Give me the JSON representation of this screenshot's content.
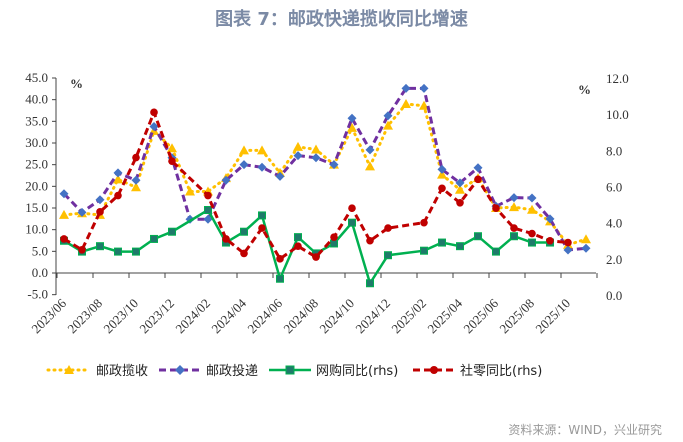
{
  "title": "图表 7：邮政快递揽收同比增速",
  "source": "资料来源：WIND，兴业研究",
  "chart_data": {
    "type": "line",
    "title": "图表 7：邮政快递揽收同比增速",
    "left_unit": "%",
    "right_unit": "%",
    "ylim_left": [
      -5,
      45
    ],
    "ylim_right": [
      0,
      12
    ],
    "yticks_left": [
      "-5.0",
      "0.0",
      "5.0",
      "10.0",
      "15.0",
      "20.0",
      "25.0",
      "30.0",
      "35.0",
      "40.0",
      "45.0"
    ],
    "yticks_right": [
      "0.0",
      "2.0",
      "4.0",
      "6.0",
      "8.0",
      "10.0",
      "12.0"
    ],
    "x": [
      "2023/06",
      "2023/07",
      "2023/08",
      "2023/09",
      "2023/10",
      "2023/11",
      "2023/12",
      "2024/01",
      "2024/02",
      "2024/03",
      "2024/04",
      "2024/05",
      "2024/06",
      "2024/07",
      "2024/08",
      "2024/09",
      "2024/10",
      "2024/11",
      "2024/12",
      "2025/01",
      "2025/02",
      "2025/03",
      "2025/04",
      "2025/05",
      "2025/06",
      "2025/07",
      "2025/08",
      "2025/09",
      "2025/10",
      "2025/11"
    ],
    "xtick_labels": [
      "2023/06",
      "2023/08",
      "2023/10",
      "2023/12",
      "2024/02",
      "2024/04",
      "2024/06",
      "2024/08",
      "2024/10",
      "2024/12",
      "2025/02",
      "2025/04",
      "2025/06",
      "2025/08",
      "2025/10"
    ],
    "series": [
      {
        "name": "邮政揽收",
        "axis": "left",
        "color": "#ffc000",
        "values": [
          13.4,
          13.8,
          13.4,
          21.6,
          19.8,
          32.8,
          28.8,
          18.8,
          18.8,
          21.9,
          28.3,
          28.3,
          23.1,
          29.1,
          28.5,
          25.0,
          33.5,
          24.6,
          34.0,
          39.0,
          38.6,
          22.7,
          19.2,
          21.9,
          15.0,
          15.2,
          14.6,
          11.9,
          6.5,
          7.8
        ]
      },
      {
        "name": "邮政投递",
        "axis": "left",
        "color": "#7030a0",
        "marker_color": "#4472c4",
        "values": [
          18.3,
          14.0,
          16.9,
          23.1,
          21.4,
          33.8,
          26.6,
          12.4,
          12.4,
          21.4,
          25.0,
          24.4,
          22.3,
          27.1,
          26.6,
          25.0,
          35.7,
          28.4,
          36.3,
          42.6,
          42.6,
          23.9,
          20.8,
          24.3,
          15.4,
          17.4,
          17.3,
          12.5,
          5.3,
          5.7
        ]
      },
      {
        "name": "网购同比(rhs)",
        "axis": "right",
        "color": "#00b050",
        "marker_color": "#1f7a6a",
        "values": [
          3.0,
          2.4,
          2.7,
          2.4,
          2.4,
          3.1,
          3.5,
          null,
          4.7,
          2.9,
          3.5,
          4.4,
          0.9,
          3.2,
          2.3,
          2.85,
          4.0,
          0.65,
          2.2,
          null,
          2.45,
          2.9,
          2.7,
          3.25,
          2.4,
          3.25,
          2.9,
          2.9,
          null,
          null
        ]
      },
      {
        "name": "社零同比(rhs)",
        "axis": "right",
        "color": "#c00000",
        "values": [
          3.1,
          2.5,
          4.6,
          5.5,
          7.6,
          10.1,
          7.4,
          null,
          5.5,
          3.1,
          2.3,
          3.7,
          2.0,
          2.7,
          2.1,
          3.2,
          4.8,
          3.0,
          3.7,
          null,
          4.0,
          5.9,
          5.1,
          6.4,
          4.8,
          3.7,
          3.4,
          3.0,
          2.9,
          null
        ]
      }
    ],
    "legend_position": "bottom",
    "grid": false
  }
}
